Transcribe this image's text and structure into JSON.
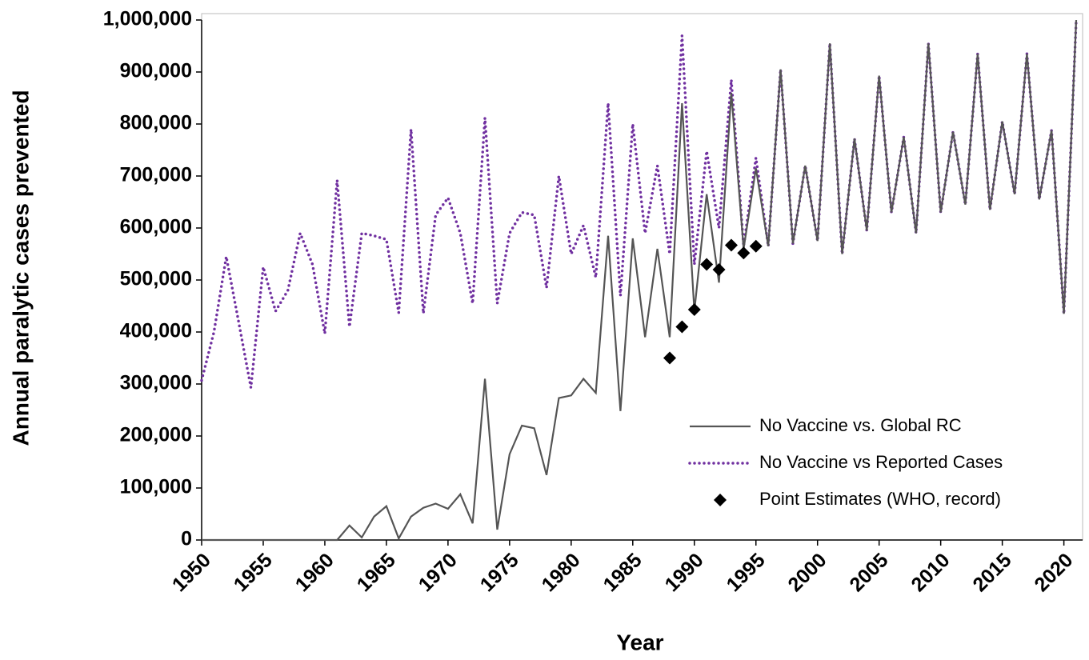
{
  "chart_data": {
    "type": "line",
    "xlabel": "Year",
    "ylabel": "Annual paralytic cases prevented",
    "x": [
      1950,
      1951,
      1952,
      1953,
      1954,
      1955,
      1956,
      1957,
      1958,
      1959,
      1960,
      1961,
      1962,
      1963,
      1964,
      1965,
      1966,
      1967,
      1968,
      1969,
      1970,
      1971,
      1972,
      1973,
      1974,
      1975,
      1976,
      1977,
      1978,
      1979,
      1980,
      1981,
      1982,
      1983,
      1984,
      1985,
      1986,
      1987,
      1988,
      1989,
      1990,
      1991,
      1992,
      1993,
      1994,
      1995,
      1996,
      1997,
      1998,
      1999,
      2000,
      2001,
      2002,
      2003,
      2004,
      2005,
      2006,
      2007,
      2008,
      2009,
      2010,
      2011,
      2012,
      2013,
      2014,
      2015,
      2016,
      2017,
      2018,
      2019,
      2020,
      2021
    ],
    "series": [
      {
        "name": "No Vaccine vs. Global RC",
        "color": "#555555",
        "style": "solid",
        "values": [
          0,
          0,
          0,
          0,
          0,
          0,
          0,
          0,
          0,
          0,
          0,
          0,
          28000,
          5000,
          45000,
          65000,
          3000,
          45000,
          62000,
          70000,
          60000,
          88000,
          32000,
          310000,
          20000,
          165000,
          220000,
          215000,
          125000,
          273000,
          278000,
          310000,
          283000,
          585000,
          248000,
          580000,
          390000,
          560000,
          390000,
          840000,
          440000,
          665000,
          495000,
          860000,
          560000,
          715000,
          565000,
          905000,
          570000,
          720000,
          575000,
          955000,
          550000,
          772000,
          595000,
          893000,
          630000,
          775000,
          590000,
          955000,
          630000,
          785000,
          645000,
          935000,
          635000,
          805000,
          665000,
          935000,
          655000,
          788000,
          435000,
          1000000
        ]
      },
      {
        "name": "No Vaccine vs Reported Cases",
        "color": "#7030a0",
        "style": "dotted",
        "values": [
          307000,
          400000,
          545000,
          420000,
          293000,
          525000,
          440000,
          480000,
          590000,
          530000,
          397000,
          692000,
          410000,
          590000,
          585000,
          578000,
          437000,
          790000,
          436000,
          625000,
          658000,
          590000,
          455000,
          812000,
          455000,
          590000,
          630000,
          625000,
          485000,
          700000,
          550000,
          605000,
          505000,
          840000,
          470000,
          800000,
          590000,
          720000,
          550000,
          970000,
          530000,
          748000,
          600000,
          885000,
          565000,
          735000,
          565000,
          905000,
          570000,
          720000,
          575000,
          955000,
          550000,
          772000,
          595000,
          893000,
          630000,
          775000,
          590000,
          955000,
          630000,
          785000,
          645000,
          935000,
          635000,
          805000,
          665000,
          935000,
          655000,
          788000,
          435000,
          1000000
        ]
      },
      {
        "name": "Point Estimates (WHO, record)",
        "color": "#000000",
        "style": "diamond",
        "x": [
          1988,
          1989,
          1990,
          1991,
          1992,
          1993,
          1994,
          1995
        ],
        "values": [
          350000,
          410000,
          443000,
          530000,
          520000,
          567000,
          552000,
          565000
        ]
      }
    ],
    "xlim": [
      1950,
      2021
    ],
    "xticks": [
      1950,
      1955,
      1960,
      1965,
      1970,
      1975,
      1980,
      1985,
      1990,
      1995,
      2000,
      2005,
      2010,
      2015,
      2020
    ],
    "ylim": [
      0,
      1000000
    ],
    "yticks": [
      0,
      {
        "value": 100000,
        "label": "100,000"
      },
      {
        "value": 200000,
        "label": "200,000"
      },
      {
        "value": 300000,
        "label": "300,000"
      },
      {
        "value": 400000,
        "label": "400,000"
      },
      {
        "value": 500000,
        "label": "500,000"
      },
      {
        "value": 600000,
        "label": "600,000"
      },
      {
        "value": 700000,
        "label": "700,000"
      },
      {
        "value": 800000,
        "label": "800,000"
      },
      {
        "value": 900000,
        "label": "900,000"
      },
      {
        "value": 1000000,
        "label": "1,000,000"
      }
    ],
    "legend": "lower right"
  }
}
